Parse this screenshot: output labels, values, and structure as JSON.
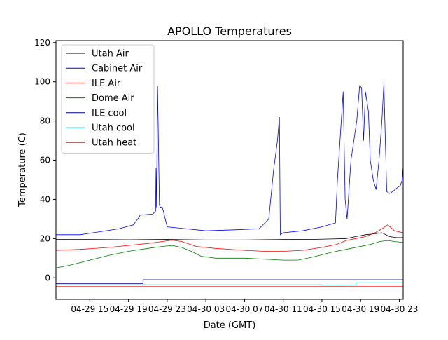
{
  "chart_data": {
    "type": "line",
    "title": "APOLLO Temperatures",
    "xlabel": "Date (GMT)",
    "ylabel": "Temperature (C)",
    "xlim": [
      11.5,
      47.4
    ],
    "ylim": [
      -11,
      121
    ],
    "x_unit": "hours since 04-29 00:00 GMT",
    "x_ticks": [
      {
        "value": 15,
        "label": "04-29 15"
      },
      {
        "value": 19,
        "label": "04-29 19"
      },
      {
        "value": 23,
        "label": "04-29 23"
      },
      {
        "value": 27,
        "label": "04-30 03"
      },
      {
        "value": 31,
        "label": "04-30 07"
      },
      {
        "value": 35,
        "label": "04-30 11"
      },
      {
        "value": 39,
        "label": "04-30 15"
      },
      {
        "value": 43,
        "label": "04-30 19"
      },
      {
        "value": 47,
        "label": "04-30 23"
      }
    ],
    "y_ticks": [
      {
        "value": 0,
        "label": "0"
      },
      {
        "value": 20,
        "label": "20"
      },
      {
        "value": 40,
        "label": "40"
      },
      {
        "value": 60,
        "label": "60"
      },
      {
        "value": 80,
        "label": "80"
      },
      {
        "value": 100,
        "label": "100"
      },
      {
        "value": 120,
        "label": "120"
      }
    ],
    "legend_position": "top-left",
    "series": [
      {
        "name": "Utah Air",
        "color": "#000000",
        "x": [
          11.5,
          15,
          19,
          23,
          27,
          31,
          35,
          38,
          40,
          41.5,
          42.5,
          43.5,
          44.5,
          45.2,
          46,
          46.7,
          47.4
        ],
        "y": [
          19.5,
          19.5,
          19.4,
          19.6,
          19.3,
          19.3,
          19.5,
          19.6,
          19.8,
          20,
          21,
          22,
          22.5,
          23,
          21,
          20.5,
          20.5
        ]
      },
      {
        "name": "Cabinet Air",
        "color": "#0000ff",
        "x": [
          11.5,
          14,
          16,
          18,
          19.5,
          20.1,
          20.2,
          21.5,
          21.8,
          21.85,
          21.9,
          22,
          22.2,
          22.3,
          22.5,
          23,
          24,
          27,
          30,
          32.5,
          33.5,
          34,
          34.4,
          34.6,
          34.7,
          35,
          37,
          39,
          40.4,
          40.6,
          41.2,
          41.4,
          41.6,
          42,
          42.6,
          42.9,
          43.1,
          43.3,
          43.5,
          43.8,
          44,
          44.3,
          44.6,
          44.9,
          45.2,
          45.4,
          45.7,
          46,
          46.3,
          46.8,
          47.1,
          47.3,
          47.4
        ],
        "y": [
          22,
          22,
          23.5,
          25,
          27,
          31,
          32,
          32.5,
          34,
          56,
          36,
          98,
          37,
          36,
          36,
          26,
          25.5,
          24,
          24.5,
          25,
          30,
          55,
          70,
          82,
          22,
          23,
          24,
          26,
          28,
          50,
          95,
          40,
          30,
          60,
          80,
          98,
          97,
          70,
          95,
          85,
          60,
          50,
          45,
          60,
          80,
          99,
          44,
          43,
          44,
          46,
          47,
          50,
          57
        ]
      },
      {
        "name": "ILE Air",
        "color": "#ff0000",
        "x": [
          11.5,
          14,
          17,
          19,
          21,
          22.5,
          23.5,
          24.5,
          26,
          28,
          31,
          33,
          35,
          37,
          39,
          40.5,
          41.5,
          42.5,
          43.5,
          44.5,
          45.2,
          45.8,
          46.5,
          47.4
        ],
        "y": [
          14,
          14.5,
          15.5,
          16.5,
          17.5,
          18.5,
          19.2,
          18.5,
          16,
          15,
          14,
          13.5,
          13.5,
          14,
          15.5,
          17,
          19,
          20,
          21,
          23,
          25,
          27,
          24,
          23
        ]
      },
      {
        "name": "Dome Air",
        "color": "#008000",
        "x": [
          11.5,
          13,
          15,
          17,
          19,
          21,
          22.5,
          23.5,
          24.5,
          25.5,
          26.5,
          28,
          31,
          33,
          35,
          36.5,
          38,
          40,
          42,
          44,
          45,
          45.8,
          46.5,
          47.4
        ],
        "y": [
          5,
          6.5,
          9,
          11.5,
          13.5,
          15,
          16,
          16.5,
          15.5,
          13.5,
          11,
          10,
          10,
          9.5,
          9,
          9,
          10.5,
          13,
          15,
          17,
          18.5,
          19,
          18.5,
          18
        ]
      },
      {
        "name": "ILE cool",
        "color": "#00008b",
        "x": [
          11.5,
          20.5,
          20.5,
          47.4
        ],
        "y": [
          -3,
          -3,
          -1,
          -1
        ]
      },
      {
        "name": "Utah cool",
        "color": "#00ffff",
        "x": [
          11.5,
          39,
          39,
          42.5,
          42.5,
          47.4
        ],
        "y": [
          -3.5,
          -3.5,
          -3.8,
          -3.8,
          -2.5,
          -2.5
        ]
      },
      {
        "name": "Utah heat",
        "color": "#ff0000",
        "x": [
          11.5,
          47.4
        ],
        "y": [
          -4.5,
          -4.5
        ]
      }
    ]
  }
}
